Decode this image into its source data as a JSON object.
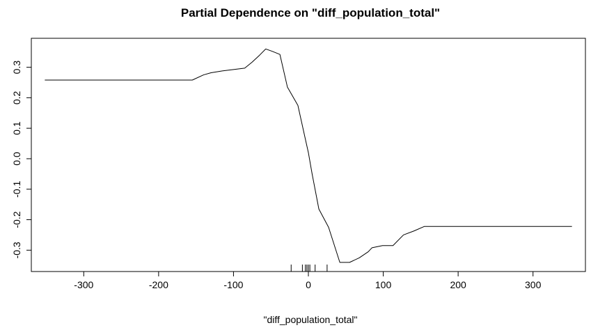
{
  "chart_data": {
    "type": "line",
    "title": "Partial Dependence on \"diff_population_total\"",
    "xlabel": "\"diff_population_total\"",
    "ylabel": "",
    "xlim": [
      -370,
      370
    ],
    "ylim": [
      -0.37,
      0.395
    ],
    "x_ticks": [
      -300,
      -200,
      -100,
      0,
      100,
      200,
      300
    ],
    "x_tick_labels": [
      "-300",
      "-200",
      "-100",
      "0",
      "100",
      "200",
      "300"
    ],
    "y_ticks": [
      -0.3,
      -0.2,
      -0.1,
      0.0,
      0.1,
      0.2,
      0.3
    ],
    "y_tick_labels": [
      "-0.3",
      "-0.2",
      "-0.1",
      "0.0",
      "0.1",
      "0.2",
      "0.3"
    ],
    "grid": false,
    "series": [
      {
        "x": [
          -352,
          -155,
          -140,
          -130,
          -115,
          -85,
          -75,
          -65,
          -57,
          -48,
          -38,
          -28,
          -14,
          -5,
          0,
          5,
          14,
          27,
          42,
          55,
          68,
          80,
          85,
          99,
          113,
          127,
          141,
          155,
          352
        ],
        "y": [
          0.258,
          0.258,
          0.275,
          0.282,
          0.288,
          0.297,
          0.317,
          0.34,
          0.36,
          0.352,
          0.342,
          0.235,
          0.175,
          0.075,
          0.02,
          -0.05,
          -0.165,
          -0.225,
          -0.34,
          -0.34,
          -0.325,
          -0.305,
          -0.292,
          -0.285,
          -0.285,
          -0.25,
          -0.237,
          -0.222,
          -0.222
        ]
      }
    ],
    "rug": [
      -23,
      -8,
      -4,
      -2,
      0,
      2,
      9,
      25
    ]
  }
}
